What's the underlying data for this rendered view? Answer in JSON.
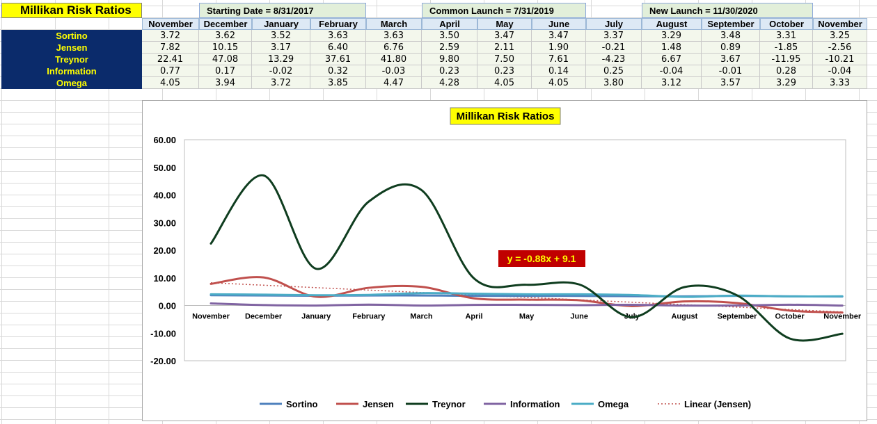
{
  "sheet": {
    "title": "Millikan Risk Ratios",
    "launches": [
      "Starting Date = 8/31/2017",
      "Common Launch = 7/31/2019",
      "New Launch = 11/30/2020"
    ],
    "months": [
      "November",
      "December",
      "January",
      "February",
      "March",
      "April",
      "May",
      "June",
      "July",
      "August",
      "September",
      "October",
      "November"
    ],
    "rows": [
      {
        "label": "Sortino",
        "values": [
          "3.72",
          "3.62",
          "3.52",
          "3.63",
          "3.63",
          "3.50",
          "3.47",
          "3.47",
          "3.37",
          "3.29",
          "3.48",
          "3.31",
          "3.25"
        ]
      },
      {
        "label": "Jensen",
        "values": [
          "7.82",
          "10.15",
          "3.17",
          "6.40",
          "6.76",
          "2.59",
          "2.11",
          "1.90",
          "-0.21",
          "1.48",
          "0.89",
          "-1.85",
          "-2.56"
        ]
      },
      {
        "label": "Treynor",
        "values": [
          "22.41",
          "47.08",
          "13.29",
          "37.61",
          "41.80",
          "9.80",
          "7.50",
          "7.61",
          "-4.23",
          "6.67",
          "3.67",
          "-11.95",
          "-10.21"
        ]
      },
      {
        "label": "Information",
        "values": [
          "0.77",
          "0.17",
          "-0.02",
          "0.32",
          "-0.03",
          "0.23",
          "0.23",
          "0.14",
          "0.25",
          "-0.04",
          "-0.01",
          "0.28",
          "-0.04"
        ]
      },
      {
        "label": "Omega",
        "values": [
          "4.05",
          "3.94",
          "3.72",
          "3.85",
          "4.47",
          "4.28",
          "4.05",
          "4.05",
          "3.80",
          "3.12",
          "3.57",
          "3.29",
          "3.33"
        ]
      }
    ]
  },
  "chart_data": {
    "type": "line",
    "title": "Millikan Risk Ratios",
    "categories": [
      "November",
      "December",
      "January",
      "February",
      "March",
      "April",
      "May",
      "June",
      "July",
      "August",
      "September",
      "October",
      "November"
    ],
    "ylim": [
      -20,
      60
    ],
    "yticks": [
      "60.00",
      "50.00",
      "40.00",
      "30.00",
      "20.00",
      "10.00",
      "0.00",
      "-10.00",
      "-20.00"
    ],
    "series": [
      {
        "name": "Sortino",
        "color": "#4f81bd",
        "values": [
          3.72,
          3.62,
          3.52,
          3.63,
          3.63,
          3.5,
          3.47,
          3.47,
          3.37,
          3.29,
          3.48,
          3.31,
          3.25
        ]
      },
      {
        "name": "Jensen",
        "color": "#c0504d",
        "values": [
          7.82,
          10.15,
          3.17,
          6.4,
          6.76,
          2.59,
          2.11,
          1.9,
          -0.21,
          1.48,
          0.89,
          -1.85,
          -2.56
        ]
      },
      {
        "name": "Treynor",
        "color": "#0f3d1f",
        "values": [
          22.41,
          47.08,
          13.29,
          37.61,
          41.8,
          9.8,
          7.5,
          7.61,
          -4.23,
          6.67,
          3.67,
          -11.95,
          -10.21
        ]
      },
      {
        "name": "Information",
        "color": "#8064a2",
        "values": [
          0.77,
          0.17,
          -0.02,
          0.32,
          -0.03,
          0.23,
          0.23,
          0.14,
          0.25,
          -0.04,
          -0.01,
          0.28,
          -0.04
        ]
      },
      {
        "name": "Omega",
        "color": "#4bacc6",
        "values": [
          4.05,
          3.94,
          3.72,
          3.85,
          4.47,
          4.28,
          4.05,
          4.05,
          3.8,
          3.12,
          3.57,
          3.29,
          3.33
        ]
      }
    ],
    "trendline": {
      "name": "Linear (Jensen)",
      "color": "#c0504d",
      "slope": -0.88,
      "intercept": 9.1,
      "equation": "y = -0.88x + 9.1"
    },
    "legend_position": "bottom"
  }
}
